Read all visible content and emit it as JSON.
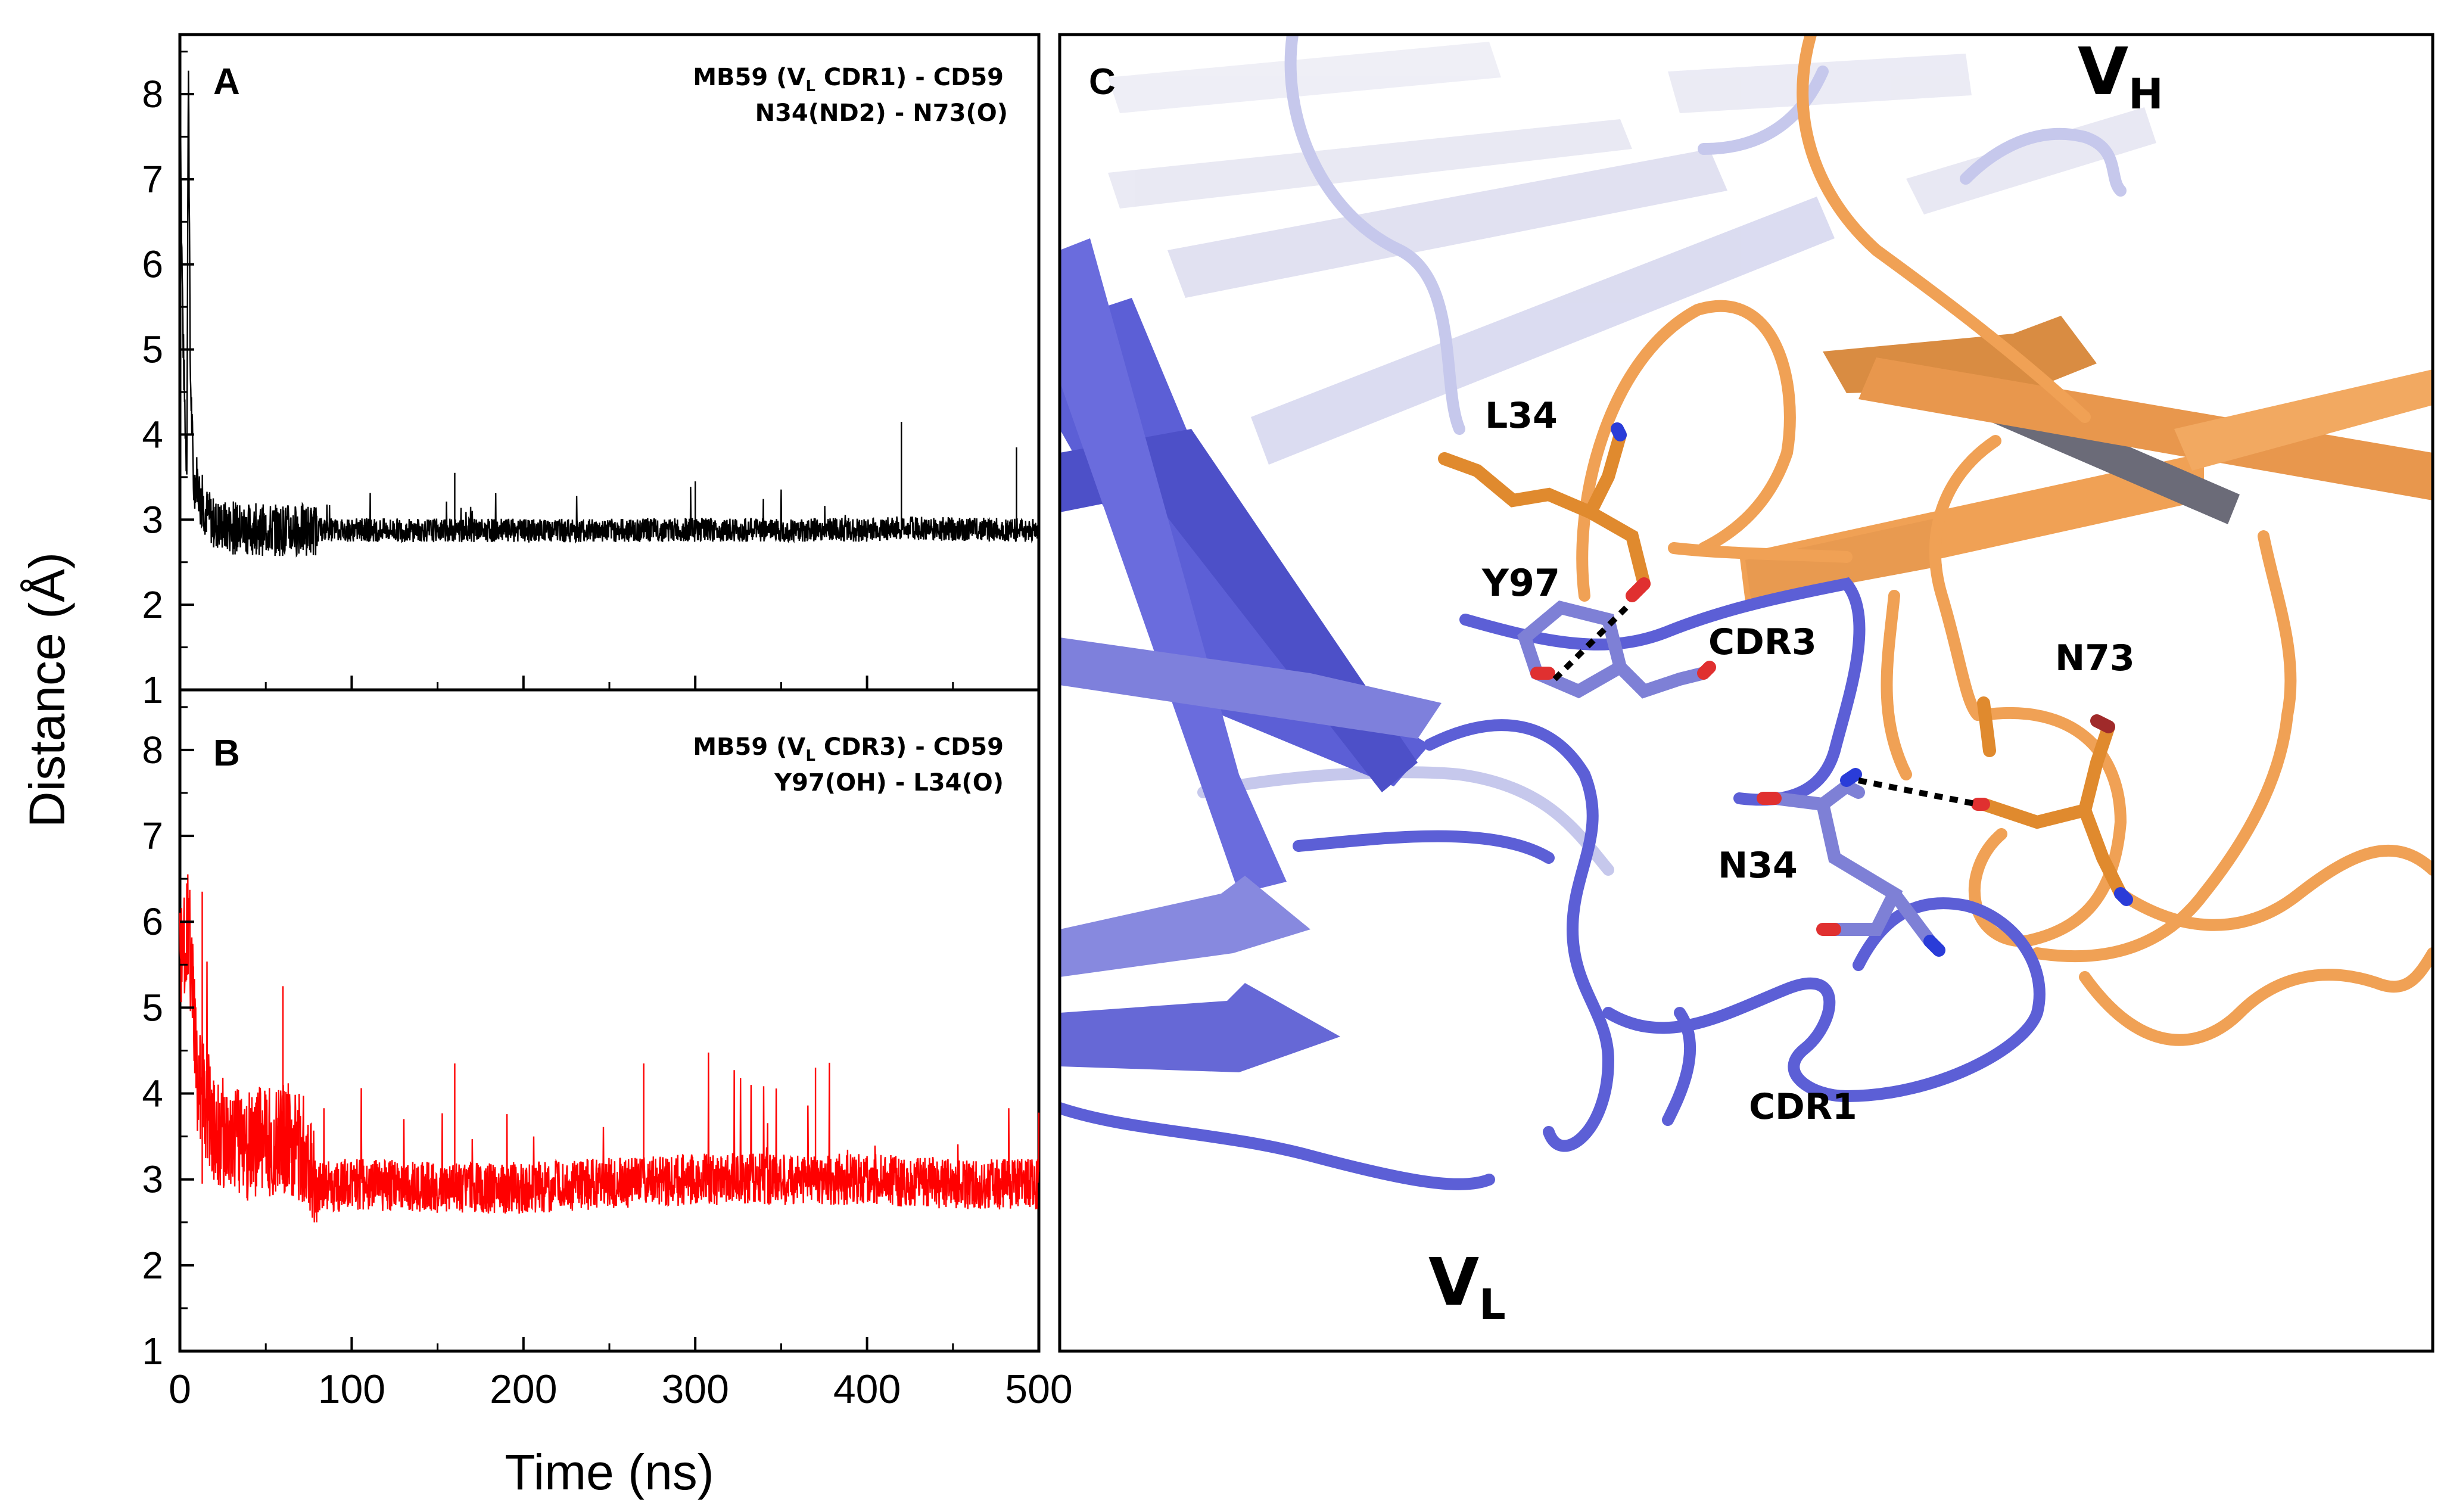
{
  "chart_data": [
    {
      "type": "line",
      "panel": "A",
      "annotation_line1_pre": "MB59 (V",
      "annotation_line1_sub": "L",
      "annotation_line1_post": " CDR1)   -    CD59",
      "annotation_line2": "N34(ND2)  -  N73(O)",
      "xlim": [
        0,
        500
      ],
      "ylim": [
        1,
        8.7
      ],
      "color": "#000000",
      "baseline": 2.85,
      "noise_amplitude": 0.14,
      "spike_max": 3.4,
      "x": [
        0,
        1,
        2,
        3,
        4,
        5,
        6,
        8,
        10,
        12,
        15,
        20,
        30,
        50,
        100,
        200,
        300,
        400,
        420,
        480,
        500
      ],
      "y": [
        8.6,
        6.3,
        5.0,
        4.2,
        3.6,
        8.5,
        4.8,
        3.4,
        3.5,
        3.2,
        3.1,
        2.95,
        2.9,
        2.88,
        2.88,
        2.87,
        2.88,
        2.88,
        2.9,
        2.88,
        2.87
      ],
      "spikes": [
        {
          "x": 160,
          "y": 3.55
        },
        {
          "x": 420,
          "y": 4.15
        },
        {
          "x": 487,
          "y": 3.85
        },
        {
          "x": 300,
          "y": 3.45
        }
      ]
    },
    {
      "type": "line",
      "panel": "B",
      "annotation_line1_pre": "MB59 (V",
      "annotation_line1_sub": "L",
      "annotation_line1_post": " CDR3)   -    CD59",
      "annotation_line2": "Y97(OH)   - L34(O)",
      "xlim": [
        0,
        500
      ],
      "ylim": [
        1,
        8.7
      ],
      "color": "#ff0000",
      "baseline": 2.95,
      "noise_amplitude": 0.3,
      "spike_max": 4.2,
      "x": [
        0,
        5,
        10,
        20,
        40,
        60,
        75,
        80,
        100,
        150,
        200,
        250,
        300,
        350,
        400,
        450,
        500
      ],
      "y": [
        5.5,
        6.0,
        4.2,
        3.6,
        3.4,
        3.5,
        3.3,
        2.9,
        2.95,
        2.9,
        2.9,
        2.95,
        3.0,
        3.0,
        3.0,
        2.95,
        2.95
      ],
      "spikes": [
        {
          "x": 13,
          "y": 6.35
        },
        {
          "x": 60,
          "y": 5.25
        },
        {
          "x": 160,
          "y": 4.35
        },
        {
          "x": 270,
          "y": 4.35
        },
        {
          "x": 370,
          "y": 4.3
        }
      ]
    }
  ],
  "axes": {
    "ylabel": "Distance (Å)",
    "xlabel": "Time (ns)",
    "y_ticks": [
      "1",
      "2",
      "3",
      "4",
      "5",
      "6",
      "7",
      "8"
    ],
    "x_ticks": [
      "0",
      "100",
      "200",
      "300",
      "400",
      "500"
    ]
  },
  "structure_panel": {
    "panel": "C",
    "labels": {
      "vh": "V",
      "vh_sub": "H",
      "vl": "V",
      "vl_sub": "L",
      "l34": "L34",
      "y97": "Y97",
      "cdr3": "CDR3",
      "n73": "N73",
      "n34": "N34",
      "cdr1": "CDR1"
    },
    "colors": {
      "vl_chain": "#5c5fd6",
      "vl_light": "#b9bbe9",
      "vh_chain": "#f0a155",
      "vh_dark": "#c97f38",
      "oxygen": "#e03030",
      "nitrogen": "#2a3cd8",
      "vh_loop": "#c9cbee"
    }
  }
}
